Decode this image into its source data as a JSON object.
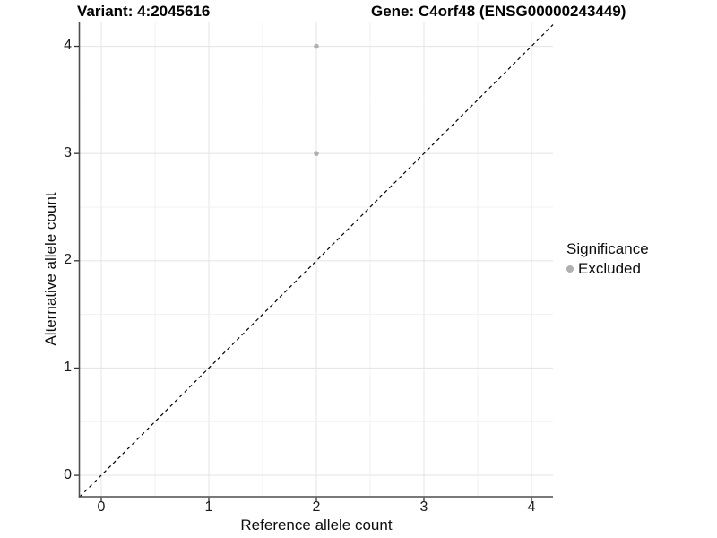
{
  "titles": {
    "variant": "Variant: 4:2045616",
    "gene": "Gene: C4orf48 (ENSG00000243449)"
  },
  "legend": {
    "title": "Significance",
    "entries": [
      {
        "label": "Excluded",
        "color": "#b0b0b0",
        "marker": "dot-icon"
      }
    ]
  },
  "colors": {
    "background": "#ffffff",
    "grid_major": "#e6e6e6",
    "grid_minor": "#f1f1f1",
    "axis_line": "#4d4d4d",
    "tick_mark": "#333333",
    "tick_text": "#1a1a1a",
    "title_text": "#000000",
    "point": "#b0b0b0",
    "reference_line": "#000000"
  },
  "chart_data": {
    "type": "scatter",
    "title": "Variant: 4:2045616    Gene: C4orf48 (ENSG00000243449)",
    "xlabel": "Reference allele count",
    "ylabel": "Alternative allele count",
    "xlim": [
      -0.2,
      4.2
    ],
    "ylim": [
      -0.2,
      4.23
    ],
    "x_ticks": [
      0,
      1,
      2,
      3,
      4
    ],
    "y_ticks": [
      0,
      1,
      2,
      3,
      4
    ],
    "minor_step": 0.5,
    "grid": true,
    "legend_position": "right",
    "series": [
      {
        "name": "Excluded",
        "color": "#b0b0b0",
        "points": [
          {
            "x": 2,
            "y": 4
          },
          {
            "x": 2,
            "y": 3
          }
        ]
      }
    ],
    "reference_line": {
      "style": "dashed",
      "slope": 1,
      "intercept": 0,
      "color": "#000000"
    }
  }
}
